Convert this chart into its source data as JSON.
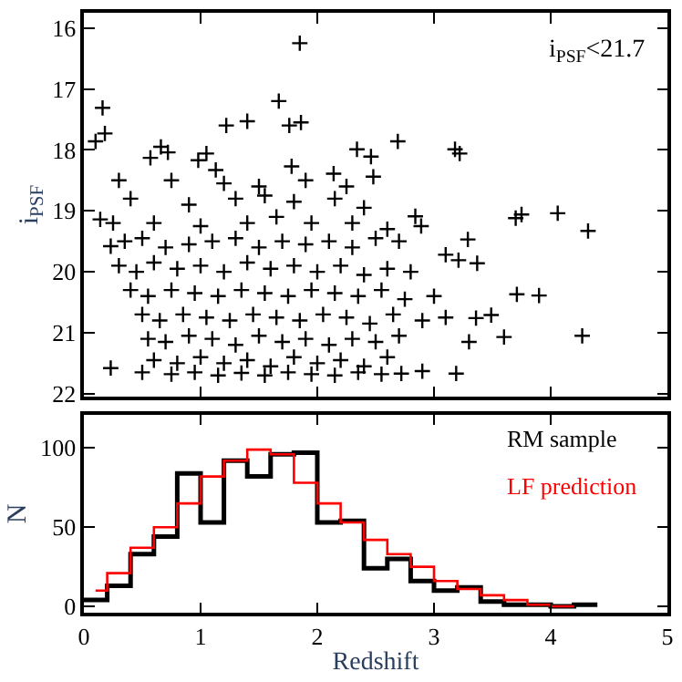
{
  "chart_data": [
    {
      "type": "scatter",
      "ylabel": "i$_{PSF}$",
      "annotations": [
        "i$_{PSF}$<21.7"
      ],
      "marker": "cross",
      "color": "#000000",
      "xlim": [
        0,
        5
      ],
      "xticks": [
        0,
        1,
        2,
        3,
        4,
        5
      ],
      "ylim": [
        22.05,
        15.75
      ],
      "yticks": [
        16,
        17,
        18,
        19,
        20,
        21,
        22
      ],
      "tick_labels": "y",
      "x": [
        1.85,
        0.16,
        0.1,
        0.18,
        1.67,
        1.22,
        1.4,
        1.76,
        1.86,
        2.69,
        3.18,
        3.22,
        2.34,
        2.46,
        0.57,
        0.66,
        0.72,
        0.98,
        1.05,
        1.13,
        1.78,
        2.48,
        2.14,
        4.06,
        4.32,
        3.75,
        3.7,
        2.84,
        2.89,
        3.29,
        4.27,
        3.9,
        3.71,
        3.37,
        3.1,
        3.21,
        0.23,
        0.14,
        0.23,
        3.6,
        3.49,
        3.36,
        3.19,
        2.9,
        2.72,
        0.35,
        0.5,
        0.7,
        0.9,
        1.1,
        1.3,
        1.5,
        1.7,
        1.9,
        2.1,
        2.3,
        2.5,
        2.7,
        0.3,
        0.45,
        0.6,
        0.8,
        1.0,
        1.2,
        1.4,
        1.6,
        1.8,
        2.0,
        2.2,
        2.4,
        2.6,
        2.8,
        0.4,
        0.55,
        0.75,
        0.95,
        1.15,
        1.35,
        1.55,
        1.75,
        1.95,
        2.15,
        2.35,
        2.55,
        2.75,
        3.0,
        0.5,
        0.65,
        0.85,
        1.05,
        1.25,
        1.45,
        1.65,
        1.85,
        2.05,
        2.25,
        2.45,
        2.65,
        2.9,
        3.1,
        0.55,
        0.7,
        0.9,
        1.1,
        1.3,
        1.5,
        1.7,
        1.9,
        2.1,
        2.3,
        2.5,
        2.7,
        3.3,
        0.6,
        0.8,
        1.0,
        1.2,
        1.4,
        1.6,
        1.8,
        2.0,
        2.2,
        2.4,
        2.6,
        0.5,
        0.75,
        0.95,
        1.15,
        1.35,
        1.55,
        1.75,
        1.95,
        2.15,
        2.35,
        2.55,
        0.25,
        0.6,
        1.0,
        1.4,
        1.65,
        1.95,
        2.3,
        2.6,
        0.4,
        0.9,
        1.3,
        1.55,
        1.8,
        2.15,
        2.4,
        0.3,
        0.75,
        1.2,
        1.5,
        1.9,
        2.25
      ],
      "values": [
        16.25,
        17.31,
        17.86,
        17.73,
        17.2,
        17.6,
        17.53,
        17.6,
        17.55,
        17.86,
        17.99,
        18.06,
        17.99,
        18.11,
        18.13,
        17.95,
        18.04,
        18.17,
        18.06,
        18.33,
        18.27,
        18.44,
        18.39,
        19.04,
        19.33,
        19.06,
        19.12,
        19.09,
        19.25,
        19.47,
        21.05,
        20.39,
        20.37,
        19.86,
        19.72,
        19.81,
        21.58,
        19.14,
        19.58,
        21.07,
        20.71,
        20.76,
        21.67,
        21.63,
        21.67,
        19.5,
        19.45,
        19.6,
        19.55,
        19.5,
        19.45,
        19.6,
        19.5,
        19.55,
        19.5,
        19.6,
        19.45,
        19.5,
        19.9,
        20.0,
        19.85,
        19.95,
        19.9,
        20.0,
        19.85,
        19.95,
        19.9,
        20.0,
        19.9,
        20.05,
        19.95,
        20.0,
        20.3,
        20.4,
        20.3,
        20.35,
        20.4,
        20.3,
        20.35,
        20.4,
        20.3,
        20.35,
        20.4,
        20.3,
        20.45,
        20.4,
        20.7,
        20.8,
        20.7,
        20.75,
        20.8,
        20.7,
        20.75,
        20.8,
        20.7,
        20.75,
        20.85,
        20.7,
        20.8,
        20.75,
        21.1,
        21.15,
        21.05,
        21.1,
        21.2,
        21.05,
        21.15,
        21.1,
        21.2,
        21.1,
        21.15,
        21.05,
        21.15,
        21.45,
        21.5,
        21.4,
        21.5,
        21.45,
        21.55,
        21.4,
        21.5,
        21.45,
        21.55,
        21.4,
        21.65,
        21.68,
        21.65,
        21.7,
        21.66,
        21.7,
        21.65,
        21.68,
        21.7,
        21.65,
        21.68,
        19.2,
        19.2,
        19.25,
        19.2,
        19.1,
        19.2,
        19.2,
        19.3,
        18.8,
        18.9,
        18.8,
        18.75,
        18.85,
        18.8,
        18.95,
        18.5,
        18.5,
        18.55,
        18.6,
        18.5,
        18.6
      ]
    },
    {
      "type": "step",
      "legend": "top right",
      "xlabel": "Redshift",
      "ylabel": "N",
      "xlim": [
        0,
        5
      ],
      "xticks": [
        0,
        1,
        2,
        3,
        4,
        5
      ],
      "ylim": [
        -4,
        121
      ],
      "yticks": [
        0,
        50,
        100
      ],
      "series": [
        {
          "name": "RM sample",
          "color": "#000000",
          "x": [
            0,
            0.2,
            0.4,
            0.6,
            0.8,
            1.0,
            1.2,
            1.4,
            1.6,
            1.8,
            2.0,
            2.2,
            2.4,
            2.6,
            2.8,
            3.0,
            3.2,
            3.4,
            3.6,
            3.8,
            4.0,
            4.2,
            4.4
          ],
          "values": [
            4,
            13,
            33,
            44,
            84,
            53,
            92,
            82,
            96,
            97,
            53,
            54,
            24,
            30,
            16,
            10,
            12,
            3,
            1,
            1,
            0,
            1,
            1
          ]
        },
        {
          "name": "LF prediction",
          "color": "#ff0000",
          "x": [
            0.1,
            0.2,
            0.4,
            0.6,
            0.8,
            1.0,
            1.2,
            1.4,
            1.6,
            1.8,
            2.0,
            2.2,
            2.4,
            2.6,
            2.8,
            3.0,
            3.2,
            3.4,
            3.6,
            3.8,
            4.0,
            4.2
          ],
          "values": [
            10,
            21,
            37,
            50,
            65,
            82,
            92,
            99,
            96,
            78,
            65,
            53,
            42,
            33,
            25,
            16,
            11,
            7,
            4,
            1,
            0,
            0
          ]
        }
      ]
    }
  ]
}
